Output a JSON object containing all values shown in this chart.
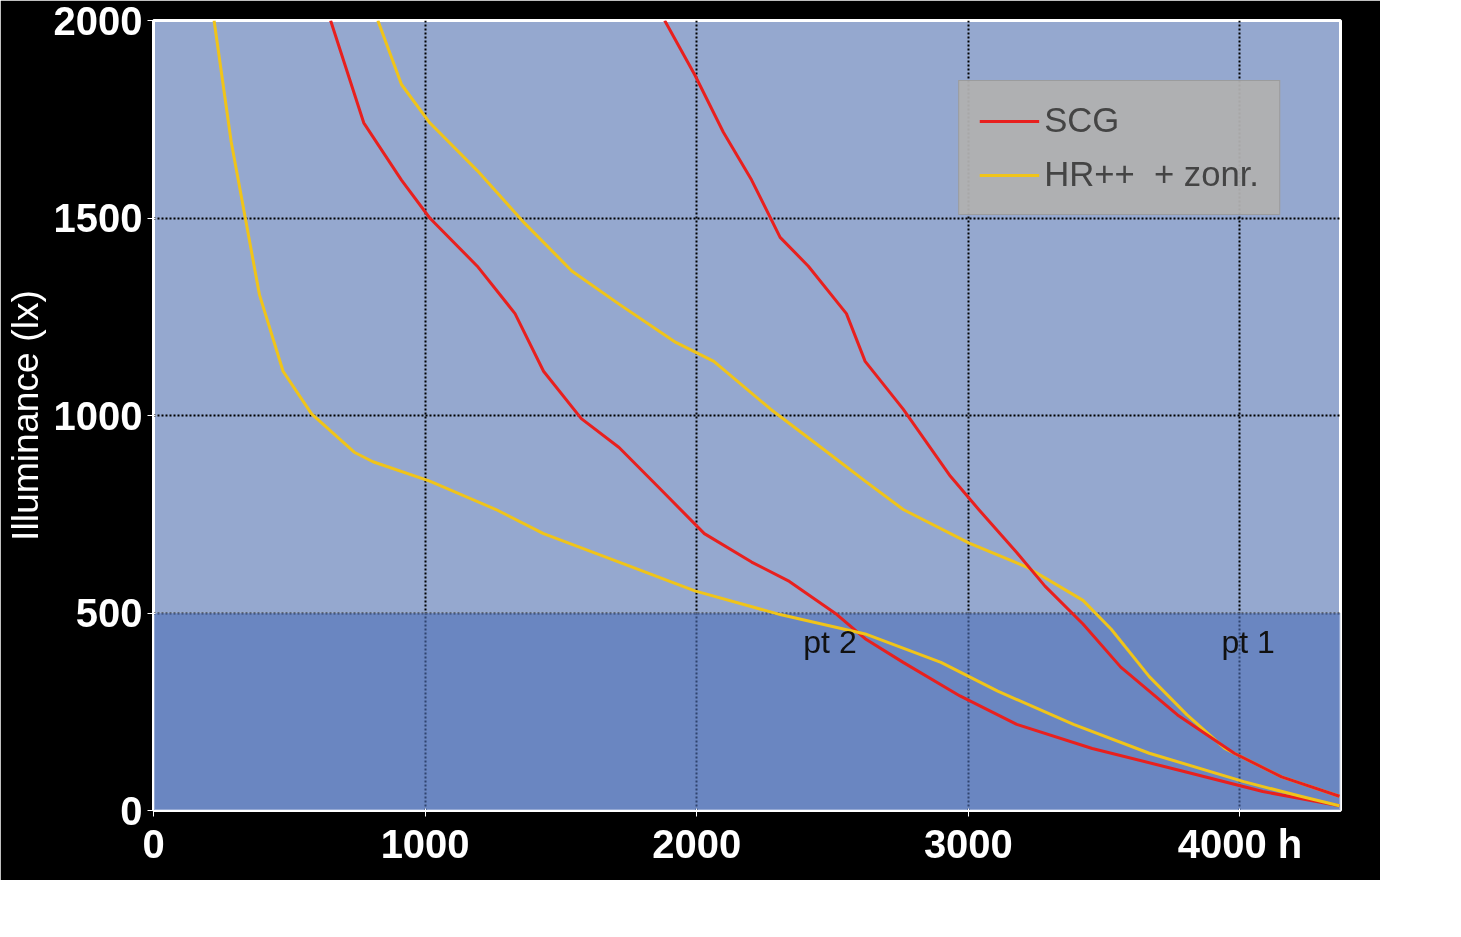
{
  "chart_data": {
    "type": "line",
    "ylabel": "Illuminance (lx)",
    "xlim": [
      0,
      4370
    ],
    "ylim": [
      0,
      2000
    ],
    "xticks": [
      0,
      1000,
      2000,
      3000,
      {
        "value": 4000,
        "label": "4000 h"
      }
    ],
    "yticks": [
      0,
      500,
      1000,
      1500,
      2000
    ],
    "grid": true,
    "legend": "top right",
    "line_style": "solid",
    "marker": "none",
    "bands": [
      {
        "axis": "y",
        "from": 0,
        "to": 500,
        "color": "#4f6fb8"
      }
    ],
    "annotations": [
      "pt 2",
      "pt 1"
    ],
    "series": [
      {
        "name": "SCG",
        "color": "#e8201e",
        "x": [
          652,
          774,
          913,
          1017,
          1192,
          1331,
          1436,
          1575,
          1714,
          1854,
          2028,
          2202,
          2341,
          2516,
          2620,
          2760,
          2969,
          3178,
          3456,
          3805,
          4084,
          4366
        ],
        "values": [
          2000,
          1741,
          1596,
          1500,
          1378,
          1258,
          1112,
          992,
          919,
          822,
          701,
          629,
          580,
          496,
          435,
          375,
          290,
          218,
          157,
          97,
          48,
          12
        ]
      },
      {
        "name": "HR++  + zonr.",
        "color": "#f0c419",
        "x": [
          223,
          286,
          338,
          390,
          477,
          582,
          739,
          808,
          1017,
          1261,
          1436,
          1714,
          1993,
          2307,
          2620,
          2899,
          3108,
          3387,
          3666,
          4014,
          4223,
          4366
        ],
        "values": [
          2000,
          1693,
          1500,
          1306,
          1112,
          1004,
          907,
          883,
          834,
          762,
          701,
          629,
          556,
          496,
          447,
          375,
          302,
          218,
          145,
          73,
          36,
          12
        ]
      },
      {
        "color": "#f0c419",
        "x": [
          826,
          913,
          1017,
          1192,
          1366,
          1540,
          1714,
          1923,
          2063,
          2272,
          2481,
          2620,
          2760,
          3003,
          3213,
          3422,
          3526,
          3666,
          3805,
          3944,
          4153,
          4366
        ],
        "values": [
          2000,
          1838,
          1741,
          1620,
          1487,
          1366,
          1282,
          1185,
          1137,
          1016,
          907,
          834,
          762,
          677,
          617,
          532,
          459,
          339,
          242,
          157,
          85,
          36
        ]
      },
      {
        "color": "#e8201e",
        "x": [
          1882,
          1993,
          2098,
          2202,
          2307,
          2411,
          2551,
          2620,
          2760,
          2934,
          3038,
          3178,
          3282,
          3422,
          3561,
          3770,
          3979,
          4153,
          4366
        ],
        "values": [
          2000,
          1862,
          1717,
          1596,
          1451,
          1378,
          1258,
          1137,
          1016,
          846,
          762,
          653,
          568,
          472,
          363,
          242,
          145,
          85,
          36
        ]
      }
    ]
  }
}
